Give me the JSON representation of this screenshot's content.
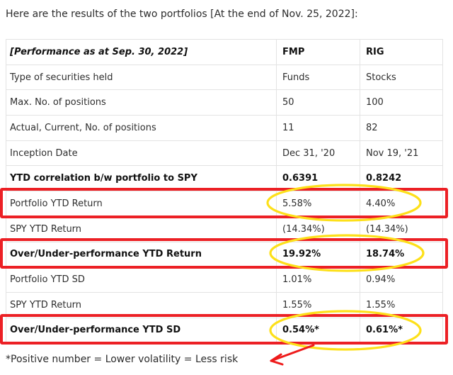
{
  "page": {
    "title": "Here are the results of the two portfolios [At the end of Nov. 25, 2022]:",
    "footnote": "*Positive number = Lower volatility = Less risk"
  },
  "table": {
    "header": {
      "label": "[Performance as at Sep. 30, 2022]",
      "col1": "FMP",
      "col2": "RIG"
    },
    "rows": [
      {
        "label": "Type of securities held",
        "fmp": "Funds",
        "rig": "Stocks",
        "bold": false,
        "boxed": false,
        "circled": false
      },
      {
        "label": "Max. No. of positions",
        "fmp": "50",
        "rig": "100",
        "bold": false,
        "boxed": false,
        "circled": false
      },
      {
        "label": "Actual, Current, No. of positions",
        "fmp": "11",
        "rig": "82",
        "bold": false,
        "boxed": false,
        "circled": false
      },
      {
        "label": "Inception Date",
        "fmp": "Dec 31, '20",
        "rig": "Nov 19, '21",
        "bold": false,
        "boxed": false,
        "circled": false
      },
      {
        "label": "YTD correlation b/w portfolio to SPY",
        "fmp": "0.6391",
        "rig": "0.8242",
        "bold": true,
        "boxed": false,
        "circled": false
      },
      {
        "label": "Portfolio YTD Return",
        "fmp": "5.58%",
        "rig": "4.40%",
        "bold": false,
        "boxed": true,
        "circled": true
      },
      {
        "label": "SPY YTD Return",
        "fmp": "(14.34%)",
        "rig": "(14.34%)",
        "bold": false,
        "boxed": false,
        "circled": false
      },
      {
        "label": "Over/Under-performance YTD Return",
        "fmp": "19.92%",
        "rig": "18.74%",
        "bold": true,
        "boxed": true,
        "circled": true
      },
      {
        "label": "Portfolio YTD SD",
        "fmp": "1.01%",
        "rig": "0.94%",
        "bold": false,
        "boxed": false,
        "circled": false
      },
      {
        "label": "SPY YTD Return",
        "fmp": "1.55%",
        "rig": "1.55%",
        "bold": false,
        "boxed": false,
        "circled": false
      },
      {
        "label": "Over/Under-performance YTD SD",
        "fmp": "0.54%*",
        "rig": "0.61%*",
        "bold": true,
        "boxed": true,
        "circled": true
      }
    ]
  },
  "annotations": {
    "box_color": "#ec2025",
    "circle_color": "#fde01a",
    "arrow_color": "#ee1b1b"
  }
}
